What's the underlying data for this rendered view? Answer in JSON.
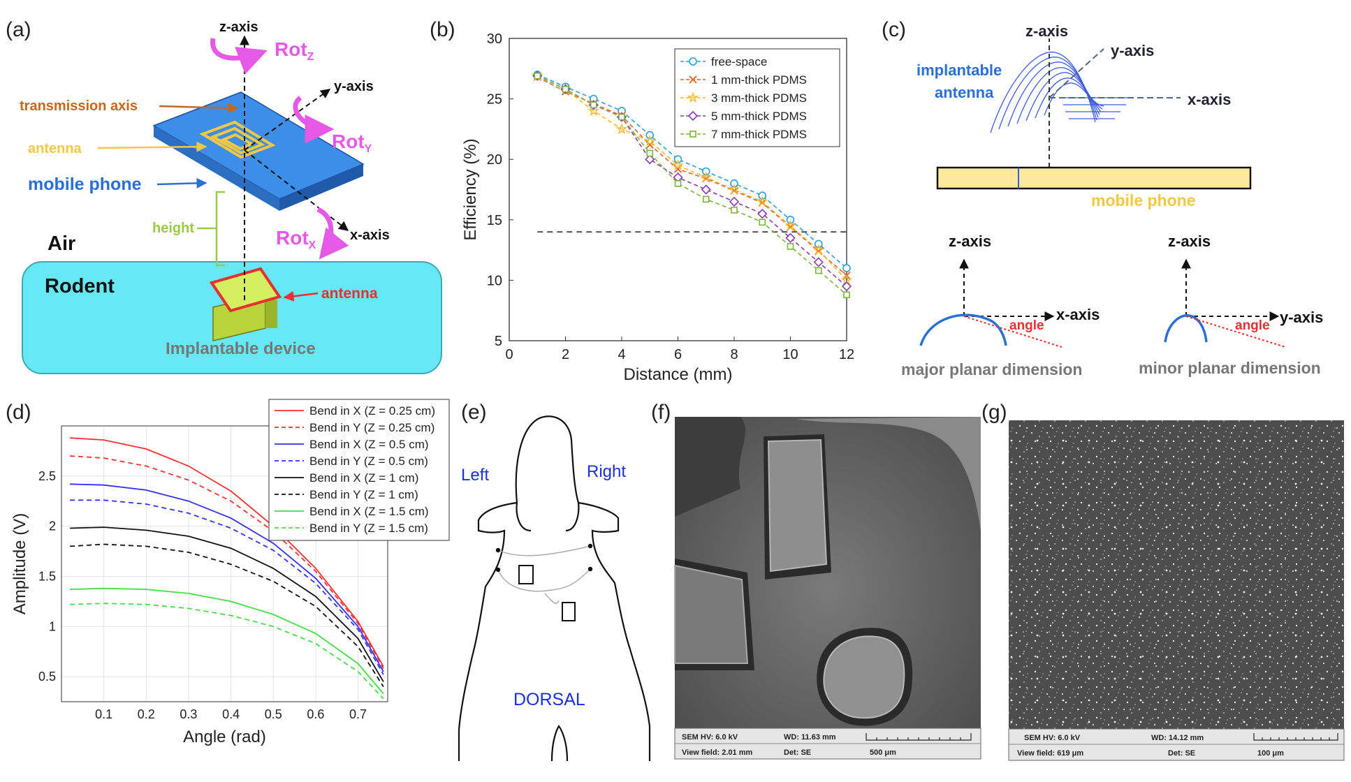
{
  "panels": {
    "a": {
      "label": "(a)",
      "z_axis": "z-axis",
      "y_axis": "y-axis",
      "x_axis": "x-axis",
      "rot_z": "Rot",
      "rot_z_sub": "Z",
      "rot_y": "Rot",
      "rot_y_sub": "Y",
      "rot_x": "Rot",
      "rot_x_sub": "X",
      "transmission_axis": "transmission axis",
      "antenna_top": "antenna",
      "mobile_phone": "mobile phone",
      "height": "height",
      "air": "Air",
      "rodent": "Rodent",
      "antenna_bottom": "antenna",
      "implantable_device": "Implantable device",
      "colors": {
        "rodent_fill": "#66e8f5",
        "phone_fill": "#3d8ee8",
        "antenna": "#f5c842",
        "rot": "#e659e6"
      }
    },
    "b": {
      "label": "(b)"
    },
    "c": {
      "label": "(c)",
      "z_axis": "z-axis",
      "y_axis": "y-axis",
      "x_axis": "x-axis",
      "implantable": "implantable",
      "antenna": "antenna",
      "mobile_phone": "mobile phone",
      "z_axis_2": "z-axis",
      "x_axis_2": "x-axis",
      "angle_1": "angle",
      "z_axis_3": "z-axis",
      "y_axis_3": "y-axis",
      "angle_2": "angle",
      "major": "major planar dimension",
      "minor": "minor planar dimension"
    },
    "d": {
      "label": "(d)"
    },
    "e": {
      "label": "(e)",
      "left": "Left",
      "right": "Right",
      "dorsal": "DORSAL"
    },
    "f": {
      "label": "(f)",
      "sem_hv": "SEM HV: 6.0 kV",
      "wd": "WD: 11.63 mm",
      "view_field": "View field: 2.01 mm",
      "det": "Det: SE",
      "scale": "500 μm"
    },
    "g": {
      "label": "(g)",
      "sem_hv": "SEM HV: 6.0 kV",
      "wd": "WD: 14.12 mm",
      "view_field": "View field: 619 μm",
      "det": "Det: SE",
      "scale": "100 μm"
    }
  },
  "chart_data": [
    {
      "panel": "b",
      "type": "line",
      "xlabel": "Distance (mm)",
      "ylabel": "Efficiency (%)",
      "xlim": [
        0,
        12
      ],
      "ylim": [
        5,
        30
      ],
      "xticks": [
        0,
        2,
        4,
        6,
        8,
        10,
        12
      ],
      "yticks": [
        5,
        10,
        15,
        20,
        25,
        30
      ],
      "legend_position": "top-right",
      "reference_line": {
        "y": 14,
        "x_from": 1,
        "x_to": 12,
        "style": "dashed",
        "color": "#222222"
      },
      "x": [
        1,
        2,
        3,
        4,
        5,
        6,
        7,
        8,
        9,
        10,
        11,
        12
      ],
      "series": [
        {
          "name": "free-space",
          "color": "#2a9fd6",
          "marker": "circle",
          "values": [
            27,
            26,
            25,
            24,
            22,
            20,
            19,
            18,
            17,
            15,
            13,
            11
          ]
        },
        {
          "name": "1 mm-thick PDMS",
          "color": "#e8642a",
          "marker": "x",
          "values": [
            26.8,
            25.6,
            24.6,
            23.6,
            21.2,
            19.2,
            18.4,
            17.4,
            16.4,
            14.4,
            12.4,
            10.4
          ]
        },
        {
          "name": "3 mm-thick PDMS",
          "color": "#f5b82a",
          "marker": "star",
          "values": [
            26.9,
            25.8,
            24.0,
            22.5,
            21.5,
            19.5,
            18.5,
            17.5,
            16.5,
            14.5,
            12.5,
            10.0
          ]
        },
        {
          "name": "5 mm-thick PDMS",
          "color": "#8a3ab5",
          "marker": "diamond",
          "values": [
            26.9,
            25.8,
            24.5,
            23.5,
            20.0,
            18.5,
            17.5,
            16.5,
            15.5,
            13.5,
            11.5,
            9.5
          ]
        },
        {
          "name": "7 mm-thick PDMS",
          "color": "#7ab53a",
          "marker": "square",
          "values": [
            26.9,
            25.8,
            24.5,
            23.5,
            20.5,
            18.0,
            16.7,
            15.8,
            14.8,
            12.8,
            10.8,
            8.8
          ]
        }
      ]
    },
    {
      "panel": "d",
      "type": "line",
      "xlabel": "Angle (rad)",
      "ylabel": "Amplitude (V)",
      "xlim": [
        0.0,
        0.77
      ],
      "ylim": [
        0.25,
        3.0
      ],
      "xticks": [
        0.1,
        0.2,
        0.3,
        0.4,
        0.5,
        0.6,
        0.7
      ],
      "yticks": [
        0.5,
        1,
        1.5,
        2,
        2.5
      ],
      "grid": true,
      "legend_position": "top-right",
      "x": [
        0.02,
        0.1,
        0.2,
        0.3,
        0.4,
        0.5,
        0.6,
        0.7,
        0.76
      ],
      "series": [
        {
          "name": "Bend in X (Z = 0.25 cm)",
          "color": "#ff3030",
          "dash": false,
          "values": [
            2.88,
            2.86,
            2.77,
            2.6,
            2.35,
            2.0,
            1.58,
            1.05,
            0.6
          ]
        },
        {
          "name": "Bend in Y (Z = 0.25 cm)",
          "color": "#ff3030",
          "dash": true,
          "values": [
            2.7,
            2.68,
            2.6,
            2.46,
            2.25,
            1.95,
            1.55,
            1.03,
            0.58
          ]
        },
        {
          "name": "Bend in X (Z = 0.5 cm)",
          "color": "#3030ff",
          "dash": false,
          "values": [
            2.42,
            2.41,
            2.36,
            2.25,
            2.08,
            1.83,
            1.48,
            1.0,
            0.55
          ]
        },
        {
          "name": "Bend in Y (Z = 0.5 cm)",
          "color": "#3030ff",
          "dash": true,
          "values": [
            2.26,
            2.26,
            2.22,
            2.13,
            1.98,
            1.76,
            1.43,
            0.97,
            0.52
          ]
        },
        {
          "name": "Bend in X (Z = 1 cm)",
          "color": "#111111",
          "dash": false,
          "values": [
            1.98,
            1.99,
            1.96,
            1.9,
            1.78,
            1.58,
            1.3,
            0.88,
            0.45
          ]
        },
        {
          "name": "Bend in Y (Z = 1 cm)",
          "color": "#111111",
          "dash": true,
          "values": [
            1.8,
            1.82,
            1.8,
            1.74,
            1.62,
            1.45,
            1.2,
            0.8,
            0.4
          ]
        },
        {
          "name": "Bend in X (Z = 1.5 cm)",
          "color": "#44dd44",
          "dash": false,
          "values": [
            1.37,
            1.38,
            1.37,
            1.33,
            1.25,
            1.12,
            0.93,
            0.63,
            0.33
          ]
        },
        {
          "name": "Bend in Y (Z = 1.5 cm)",
          "color": "#44dd44",
          "dash": true,
          "values": [
            1.22,
            1.23,
            1.22,
            1.18,
            1.11,
            1.0,
            0.83,
            0.55,
            0.28
          ]
        }
      ]
    }
  ]
}
